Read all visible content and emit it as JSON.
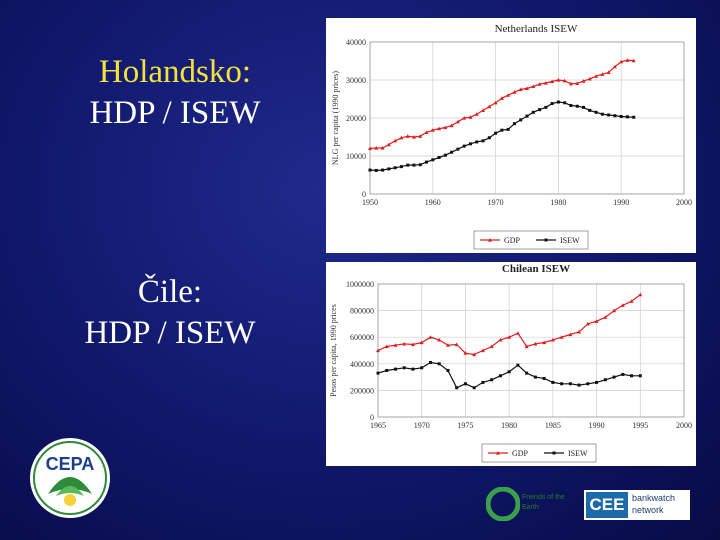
{
  "slide": {
    "heading1_line1": "Holandsko:",
    "heading1_line2": "HDP / ISEW",
    "heading2_line1": "Čile:",
    "heading2_line2": "HDP / ISEW"
  },
  "logos": {
    "cepa": "CEPA",
    "cee": "CEE",
    "cee_line1": "bankwatch",
    "cee_line2": "network",
    "ff_line1": "Friends of the",
    "ff_line2": "Earth"
  },
  "colors": {
    "gdp": "#e02020",
    "isew": "#111111",
    "accent_yellow": "#f3e23a"
  },
  "chart_data": [
    {
      "type": "line",
      "title": "Netherlands ISEW",
      "ylabel": "NLG per capita (1990 prices)",
      "xlim": [
        1950,
        2000
      ],
      "ylim": [
        0,
        40000
      ],
      "xticks": [
        1950,
        1960,
        1970,
        1980,
        1990,
        2000
      ],
      "yticks": [
        0,
        10000,
        20000,
        30000,
        40000
      ],
      "ytick_labels": [
        "0",
        "10000",
        "20000",
        "30000",
        "40000"
      ],
      "grid": true,
      "legend": "bottom",
      "x": [
        1950,
        1951,
        1952,
        1953,
        1954,
        1955,
        1956,
        1957,
        1958,
        1959,
        1960,
        1961,
        1962,
        1963,
        1964,
        1965,
        1966,
        1967,
        1968,
        1969,
        1970,
        1971,
        1972,
        1973,
        1974,
        1975,
        1976,
        1977,
        1978,
        1979,
        1980,
        1981,
        1982,
        1983,
        1984,
        1985,
        1986,
        1987,
        1988,
        1989,
        1990,
        1991,
        1992
      ],
      "series": [
        {
          "name": "GDP",
          "values": [
            12000,
            12100,
            12100,
            13000,
            14000,
            14800,
            15200,
            15000,
            15200,
            16200,
            16800,
            17200,
            17500,
            18000,
            19000,
            20000,
            20200,
            21000,
            22000,
            23000,
            24000,
            25200,
            26000,
            26800,
            27500,
            27800,
            28300,
            28900,
            29200,
            29600,
            30000,
            29800,
            29000,
            29100,
            29700,
            30300,
            31000,
            31500,
            32000,
            33500,
            34800,
            35200,
            35100
          ]
        },
        {
          "name": "ISEW",
          "values": [
            6300,
            6200,
            6300,
            6600,
            6900,
            7200,
            7600,
            7600,
            7700,
            8400,
            9000,
            9600,
            10200,
            11000,
            11800,
            12600,
            13200,
            13700,
            14000,
            14800,
            16000,
            16800,
            17000,
            18500,
            19500,
            20500,
            21500,
            22200,
            22800,
            23800,
            24200,
            24000,
            23300,
            23100,
            22800,
            22000,
            21500,
            21000,
            20800,
            20600,
            20400,
            20300,
            20200
          ]
        }
      ]
    },
    {
      "type": "line",
      "title": "Chilean ISEW",
      "ylabel": "Pesos per capita, 1990 prices",
      "xlim": [
        1965,
        2000
      ],
      "ylim": [
        0,
        1000000
      ],
      "xticks": [
        1965,
        1970,
        1975,
        1980,
        1985,
        1990,
        1995,
        2000
      ],
      "yticks": [
        0,
        200000,
        400000,
        600000,
        800000,
        1000000
      ],
      "ytick_labels": [
        "0",
        "200000",
        "400000",
        "600000",
        "800000",
        "1000000"
      ],
      "grid": true,
      "legend": "bottom",
      "x": [
        1965,
        1966,
        1967,
        1968,
        1969,
        1970,
        1971,
        1972,
        1973,
        1974,
        1975,
        1976,
        1977,
        1978,
        1979,
        1980,
        1981,
        1982,
        1983,
        1984,
        1985,
        1986,
        1987,
        1988,
        1989,
        1990,
        1991,
        1992,
        1993,
        1994,
        1995
      ],
      "series": [
        {
          "name": "GDP",
          "values": [
            500000,
            530000,
            540000,
            550000,
            545000,
            560000,
            600000,
            580000,
            540000,
            545000,
            480000,
            470000,
            500000,
            530000,
            580000,
            600000,
            630000,
            530000,
            550000,
            560000,
            580000,
            600000,
            620000,
            640000,
            700000,
            720000,
            750000,
            800000,
            840000,
            870000,
            920000
          ]
        },
        {
          "name": "ISEW",
          "values": [
            330000,
            350000,
            360000,
            370000,
            360000,
            370000,
            410000,
            400000,
            350000,
            220000,
            250000,
            220000,
            260000,
            280000,
            310000,
            340000,
            390000,
            330000,
            300000,
            290000,
            260000,
            250000,
            250000,
            240000,
            250000,
            260000,
            280000,
            300000,
            320000,
            310000,
            310000
          ]
        }
      ]
    }
  ]
}
